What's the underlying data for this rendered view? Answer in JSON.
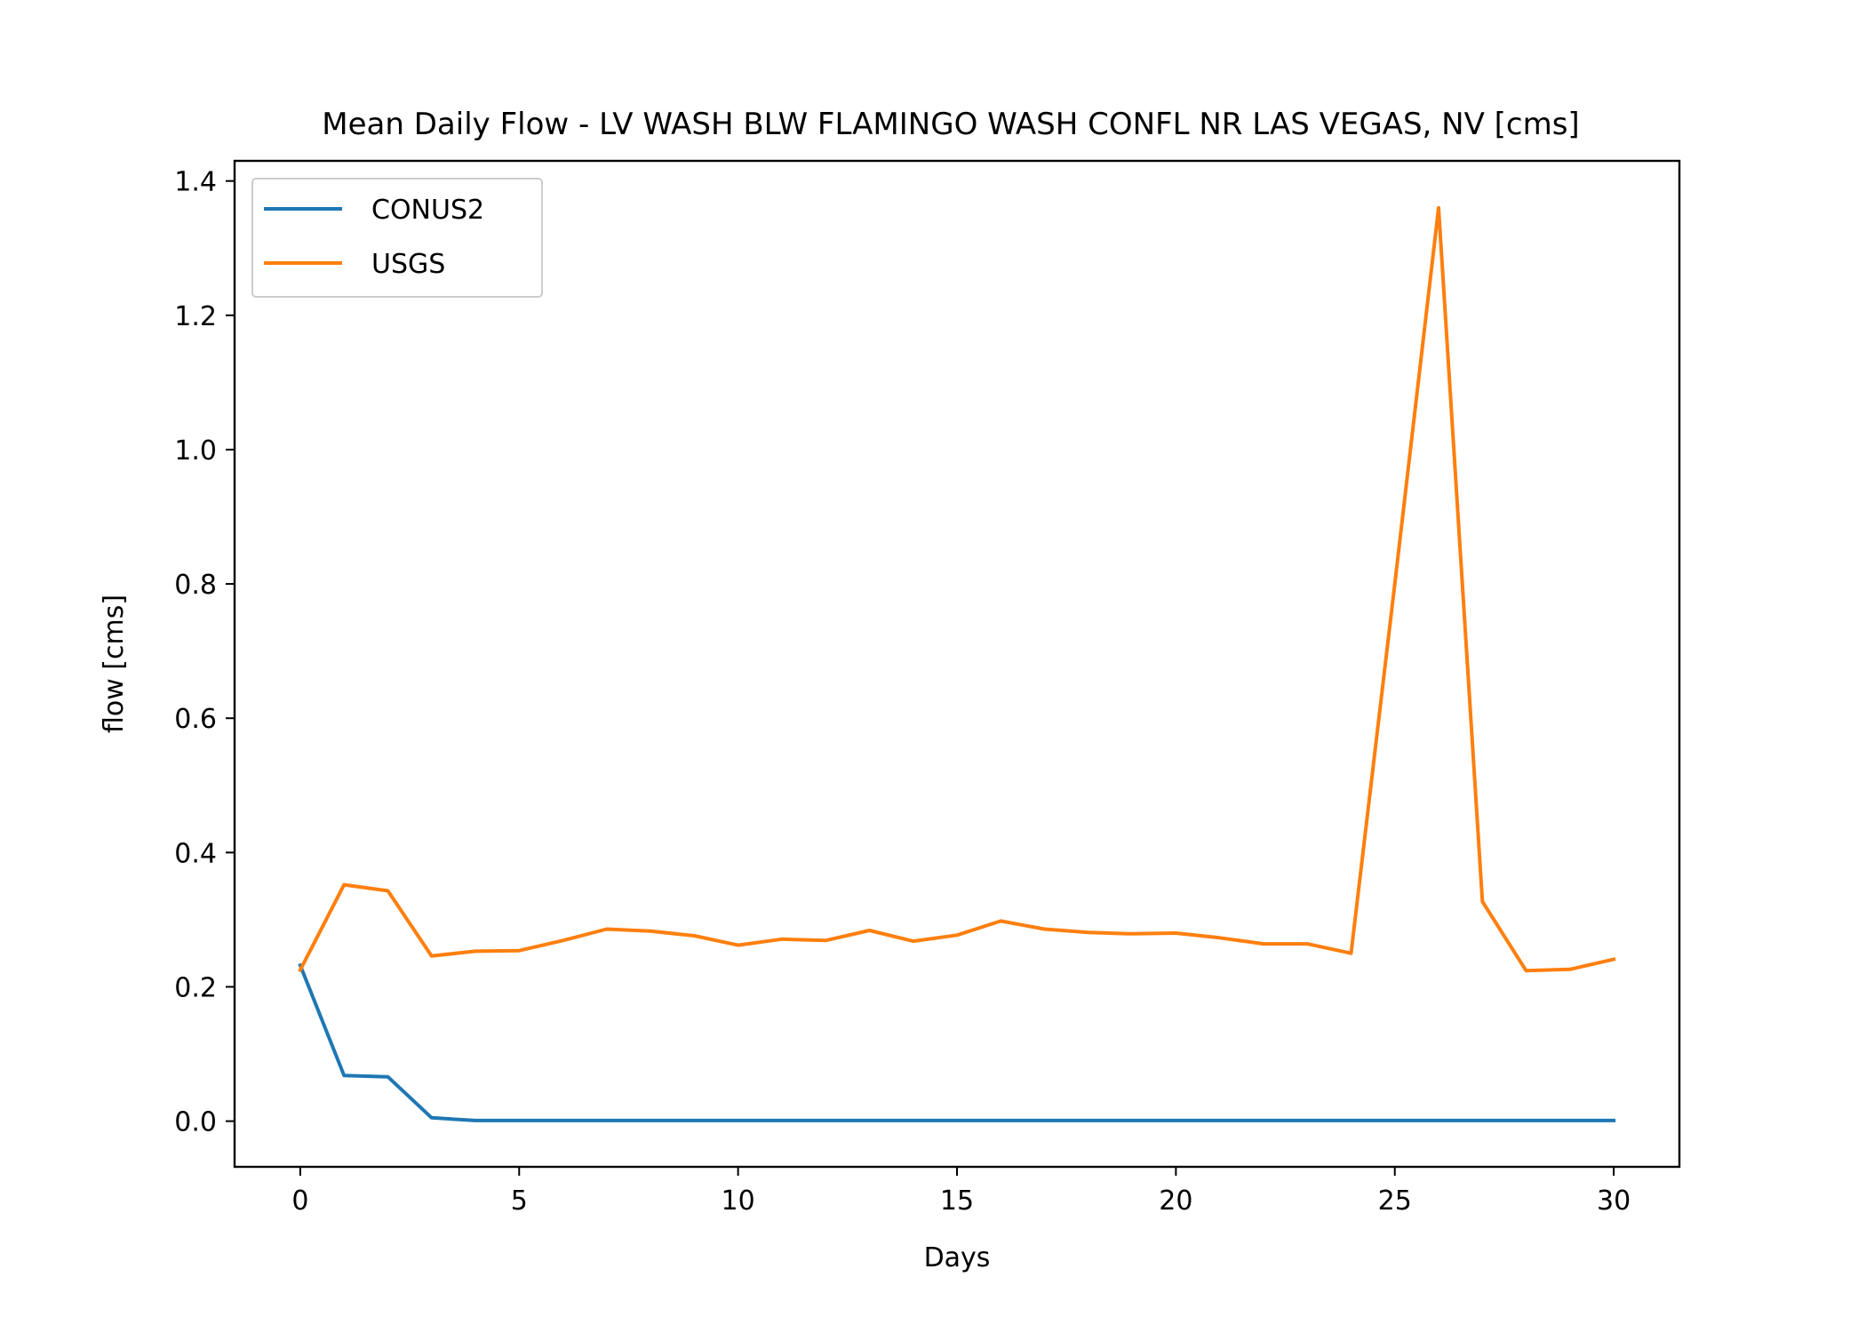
{
  "chart_data": {
    "type": "line",
    "title": "Mean Daily Flow - LV WASH BLW FLAMINGO WASH CONFL NR LAS VEGAS, NV [cms]",
    "xlabel": "Days",
    "ylabel": "flow [cms]",
    "xlim": [
      -1.5,
      31.5
    ],
    "ylim": [
      -0.068,
      1.43
    ],
    "xticks": [
      0,
      5,
      10,
      15,
      20,
      25,
      30
    ],
    "yticks": [
      0.0,
      0.2,
      0.4,
      0.6,
      0.8,
      1.0,
      1.2,
      1.4
    ],
    "xtick_labels": [
      "0",
      "5",
      "10",
      "15",
      "20",
      "25",
      "30"
    ],
    "ytick_labels": [
      "0.0",
      "0.2",
      "0.4",
      "0.6",
      "0.8",
      "1.0",
      "1.2",
      "1.4"
    ],
    "grid": false,
    "legend_position": "top-left",
    "x": [
      0,
      1,
      2,
      3,
      4,
      5,
      6,
      7,
      8,
      9,
      10,
      11,
      12,
      13,
      14,
      15,
      16,
      17,
      18,
      19,
      20,
      21,
      22,
      23,
      24,
      25,
      26,
      27,
      28,
      29,
      30
    ],
    "series": [
      {
        "name": "CONUS2",
        "color": "#1f77b4",
        "values": [
          0.232,
          0.068,
          0.066,
          0.005,
          0.001,
          0.001,
          0.001,
          0.001,
          0.001,
          0.001,
          0.001,
          0.001,
          0.001,
          0.001,
          0.001,
          0.001,
          0.001,
          0.001,
          0.001,
          0.001,
          0.001,
          0.001,
          0.001,
          0.001,
          0.001,
          0.001,
          0.001,
          0.001,
          0.001,
          0.001,
          0.001
        ]
      },
      {
        "name": "USGS",
        "color": "#ff7f0e",
        "values": [
          0.225,
          0.352,
          0.343,
          0.246,
          0.253,
          0.254,
          0.269,
          0.286,
          0.283,
          0.276,
          0.262,
          0.271,
          0.269,
          0.284,
          0.268,
          0.277,
          0.298,
          0.286,
          0.281,
          0.279,
          0.28,
          0.273,
          0.264,
          0.264,
          0.25,
          0.8,
          1.36,
          0.327,
          0.224,
          0.226,
          0.241
        ]
      }
    ]
  }
}
